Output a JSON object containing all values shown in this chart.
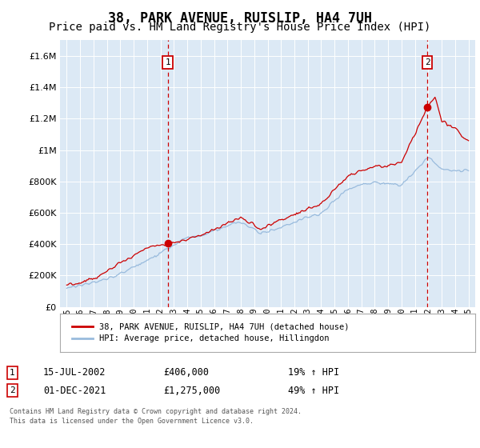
{
  "title": "38, PARK AVENUE, RUISLIP, HA4 7UH",
  "subtitle": "Price paid vs. HM Land Registry's House Price Index (HPI)",
  "legend_line1": "38, PARK AVENUE, RUISLIP, HA4 7UH (detached house)",
  "legend_line2": "HPI: Average price, detached house, Hillingdon",
  "annotation1_label": "1",
  "annotation1_date": "15-JUL-2002",
  "annotation1_price": "£406,000",
  "annotation1_hpi": "19% ↑ HPI",
  "annotation1_year": 2002.54,
  "annotation1_value": 406000,
  "annotation2_label": "2",
  "annotation2_date": "01-DEC-2021",
  "annotation2_price": "£1,275,000",
  "annotation2_hpi": "49% ↑ HPI",
  "annotation2_year": 2021.92,
  "annotation2_value": 1275000,
  "footer1": "Contains HM Land Registry data © Crown copyright and database right 2024.",
  "footer2": "This data is licensed under the Open Government Licence v3.0.",
  "ylim": [
    0,
    1700000
  ],
  "xlim_start": 1994.5,
  "xlim_end": 2025.5,
  "background_color": "#dce9f5",
  "red_color": "#cc0000",
  "blue_color": "#99bbdd",
  "grid_color": "#ffffff",
  "title_fontsize": 12,
  "subtitle_fontsize": 10
}
